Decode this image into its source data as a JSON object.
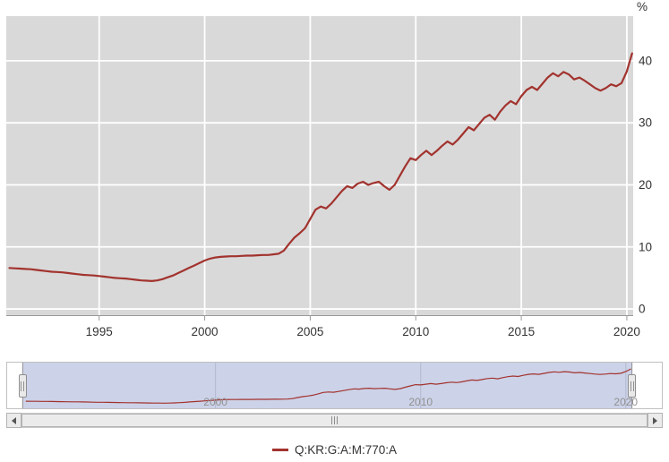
{
  "colors": {
    "series_line": "#a2332e",
    "plot_background": "#d9d9d9",
    "gridline": "#ffffff",
    "axis_text": "#333333",
    "axis_line": "#999999",
    "navigator_selected_bg": "#ccd2e8",
    "navigator_outline": "#c0c0c0",
    "navigator_gridline": "#b3b9cf",
    "navigator_text": "#919191"
  },
  "y_axis": {
    "unit": "%",
    "ticks": [
      0,
      10,
      20,
      30,
      40
    ]
  },
  "x_axis": {
    "ticks": [
      1995,
      2000,
      2005,
      2010,
      2015,
      2020
    ]
  },
  "navigator": {
    "labels": [
      2000,
      2010,
      2020
    ]
  },
  "legend": {
    "items": [
      {
        "label": "Q:KR:G:A:M:770:A",
        "color": "#a2332e"
      }
    ]
  },
  "chart_data": {
    "type": "line",
    "title": "",
    "xlabel": "",
    "ylabel": "%",
    "grid": true,
    "legend_position": "bottom",
    "xlim": [
      1990.6,
      2020.3
    ],
    "ylim": [
      -1,
      47.2
    ],
    "x_ticks": [
      1995,
      2000,
      2005,
      2010,
      2015,
      2020
    ],
    "y_ticks": [
      0,
      10,
      20,
      30,
      40
    ],
    "navigator_range": [
      1989.8,
      2021.8
    ],
    "series": [
      {
        "name": "Q:KR:G:A:M:770:A",
        "color": "#a2332e",
        "x_start": 1990.75,
        "x_step": 0.25,
        "values": [
          6.6,
          6.55,
          6.5,
          6.45,
          6.4,
          6.3,
          6.2,
          6.1,
          6.0,
          5.95,
          5.9,
          5.8,
          5.7,
          5.6,
          5.5,
          5.45,
          5.4,
          5.3,
          5.2,
          5.1,
          5.0,
          4.95,
          4.9,
          4.8,
          4.7,
          4.6,
          4.55,
          4.5,
          4.6,
          4.8,
          5.1,
          5.4,
          5.8,
          6.2,
          6.6,
          7.0,
          7.4,
          7.8,
          8.1,
          8.3,
          8.4,
          8.45,
          8.5,
          8.5,
          8.55,
          8.6,
          8.6,
          8.65,
          8.7,
          8.7,
          8.8,
          8.9,
          9.4,
          10.5,
          11.5,
          12.2,
          13.0,
          14.5,
          16.0,
          16.5,
          16.2,
          17.0,
          18.0,
          19.0,
          19.8,
          19.5,
          20.2,
          20.5,
          20.0,
          20.3,
          20.5,
          19.8,
          19.2,
          20.0,
          21.5,
          23.0,
          24.3,
          24.0,
          24.8,
          25.5,
          24.8,
          25.5,
          26.3,
          27.0,
          26.5,
          27.3,
          28.3,
          29.3,
          28.8,
          29.8,
          30.8,
          31.3,
          30.5,
          31.8,
          32.8,
          33.5,
          33.0,
          34.3,
          35.3,
          35.8,
          35.3,
          36.3,
          37.3,
          38.0,
          37.5,
          38.2,
          37.8,
          37.0,
          37.3,
          36.8,
          36.2,
          35.6,
          35.2,
          35.6,
          36.2,
          35.9,
          36.4,
          38.3,
          41.2
        ]
      }
    ]
  }
}
